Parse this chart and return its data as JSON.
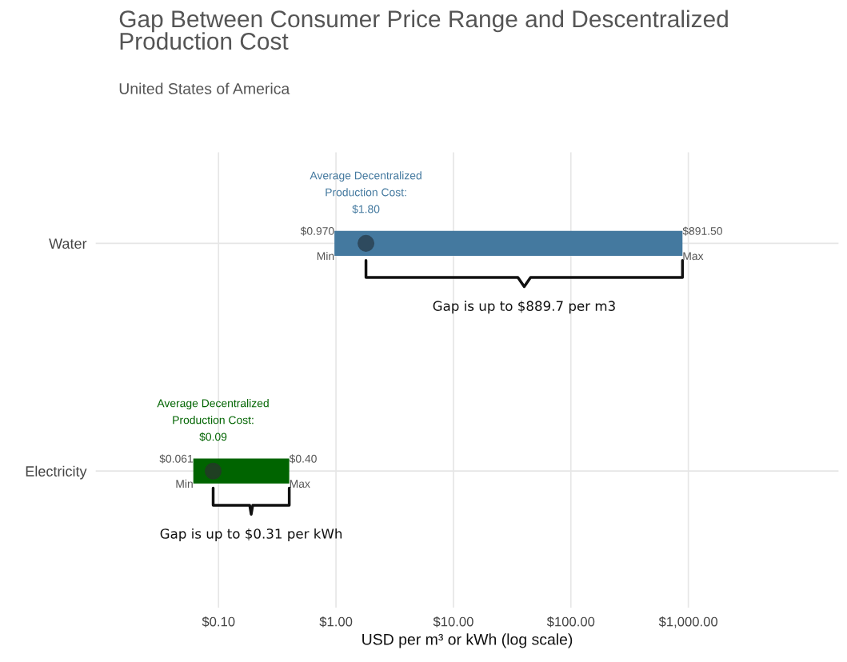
{
  "chart_data": {
    "type": "bar",
    "orientation": "horizontal",
    "title": "Gap Between Consumer Price Range and Descentralized Production Cost",
    "subtitle": "United States of America",
    "xlabel": "USD per m³ or kWh (log scale)",
    "categories": [
      "Water",
      "Electricity"
    ],
    "series": [
      {
        "values": [
          890.53,
          0.339
        ],
        "base": [
          0.97,
          0.061
        ],
        "colors": [
          "#44799f",
          "#006400"
        ]
      },
      {
        "type": "scatter",
        "values": [
          1.8,
          0.09
        ],
        "colors": [
          "#2e4a5e",
          "#1f3f22"
        ]
      }
    ],
    "log": "x",
    "xlim": [
      0.009,
      19000
    ],
    "xticks": [
      {
        "value": 0.1,
        "label": "$0.10"
      },
      {
        "value": 1,
        "label": "$1.00"
      },
      {
        "value": 10,
        "label": "$10.00"
      },
      {
        "value": 100,
        "label": "$100.00"
      },
      {
        "value": 1000,
        "label": "$1,000.00"
      }
    ],
    "grid": true,
    "legend": false,
    "annotations": [
      {
        "text": "$0.970",
        "x": 0.97,
        "y": "Water"
      },
      {
        "text": "Min",
        "x": 0.97,
        "y": "Water"
      },
      {
        "text": "$891.50",
        "x": 891.5,
        "y": "Water"
      },
      {
        "text": "Max",
        "x": 891.5,
        "y": "Water"
      },
      {
        "text": "Average Decentralized\nProduction Cost:\n$1.80",
        "x": 1.8,
        "y": "Water"
      },
      "Gap is up to $889.7 per m3",
      {
        "text": "$0.061",
        "x": 0.061,
        "y": "Electricity"
      },
      {
        "text": "Min",
        "x": 0.061,
        "y": "Electricity"
      },
      {
        "text": "$0.40",
        "x": 0.4,
        "y": "Electricity"
      },
      {
        "text": "Max",
        "x": 0.4,
        "y": "Electricity"
      },
      {
        "text": "Average Decentralized\nProduction Cost:\n$0.09",
        "x": 0.09,
        "y": "Electricity"
      },
      "Gap is up to $0.31 per kWh"
    ]
  }
}
